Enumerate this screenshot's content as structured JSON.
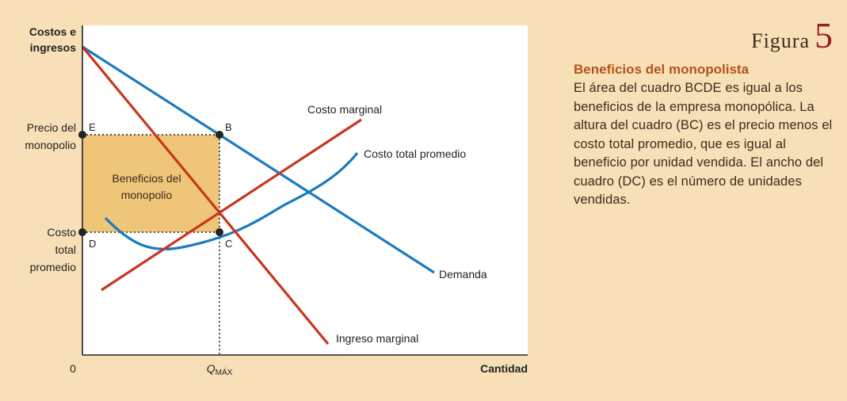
{
  "figure": {
    "word": "Figura",
    "number": "5"
  },
  "caption": {
    "title": "Beneficios del monopolista",
    "body": "El área del cuadro BCDE es igual a los beneficios de la empresa monopólica. La altura del cuadro (BC) es el precio menos el costo total promedio, que es igual al beneficio por unidad vendida. El ancho del cuadro (DC) es el número de unidades vendidas."
  },
  "axes": {
    "y_label": [
      "Costos e",
      "ingresos"
    ],
    "x_label": "Cantidad",
    "origin": "0",
    "q_label": "Q",
    "q_sub": "MÁX",
    "price_label": [
      "Precio del",
      "monopolio"
    ],
    "cost_label": [
      "Costo",
      "total",
      "promedio"
    ]
  },
  "points": {
    "B": "B",
    "C": "C",
    "D": "D",
    "E": "E"
  },
  "region_label": [
    "Beneficios del",
    "monopolio"
  ],
  "curves": {
    "marginal_cost": "Costo marginal",
    "average_total_cost": "Costo total promedio",
    "demand": "Demanda",
    "marginal_revenue": "Ingreso marginal"
  },
  "colors": {
    "background": "#f7e0b7",
    "demand": "#1b7bbf",
    "average_total_cost": "#1b7bbf",
    "marginal_cost": "#c8361f",
    "marginal_revenue": "#c8361f",
    "profit_fill": "#efc57a",
    "caption_title": "#b5531a",
    "figure_number": "#9b1d2a"
  }
}
